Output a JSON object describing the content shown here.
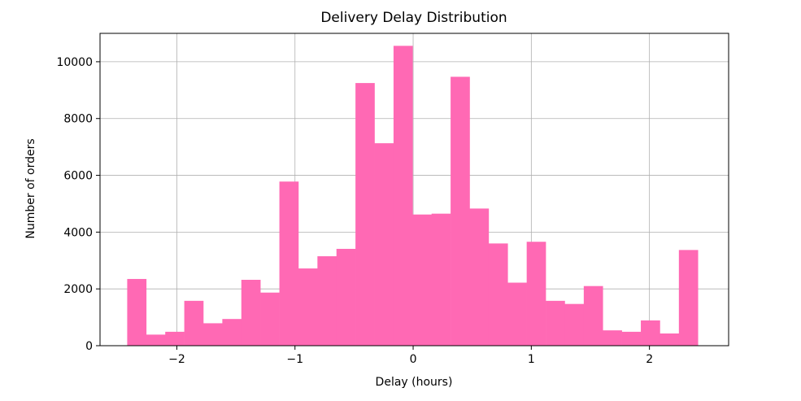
{
  "chart_data": {
    "type": "bar",
    "title": "Delivery Delay Distribution",
    "xlabel": "Delay (hours)",
    "ylabel": "Number of orders",
    "xlim": [
      -2.65,
      2.67
    ],
    "ylim": [
      0,
      11000
    ],
    "grid": true,
    "bar_color": "#ff69b4",
    "x_ticks": [
      -2,
      -1,
      0,
      1,
      2
    ],
    "x_tick_labels": [
      "−2",
      "−1",
      "0",
      "1",
      "2"
    ],
    "y_ticks": [
      0,
      2000,
      4000,
      6000,
      8000,
      10000
    ],
    "y_tick_labels": [
      "0",
      "2000",
      "4000",
      "6000",
      "8000",
      "10000"
    ],
    "bin_edges": [
      -2.42,
      -2.259,
      -2.098,
      -1.937,
      -1.776,
      -1.615,
      -1.454,
      -1.293,
      -1.132,
      -0.971,
      -0.81,
      -0.649,
      -0.488,
      -0.327,
      -0.166,
      -0.005,
      0.156,
      0.317,
      0.478,
      0.639,
      0.8,
      0.961,
      1.122,
      1.283,
      1.444,
      1.605,
      1.766,
      1.927,
      2.088,
      2.249,
      2.41
    ],
    "values": [
      2350,
      390,
      490,
      1580,
      790,
      940,
      2320,
      1870,
      5780,
      2720,
      3150,
      3410,
      9250,
      7130,
      10560,
      4620,
      4650,
      9470,
      4830,
      3600,
      2220,
      3660,
      1580,
      1470,
      2100,
      540,
      490,
      890,
      430,
      3370
    ]
  }
}
